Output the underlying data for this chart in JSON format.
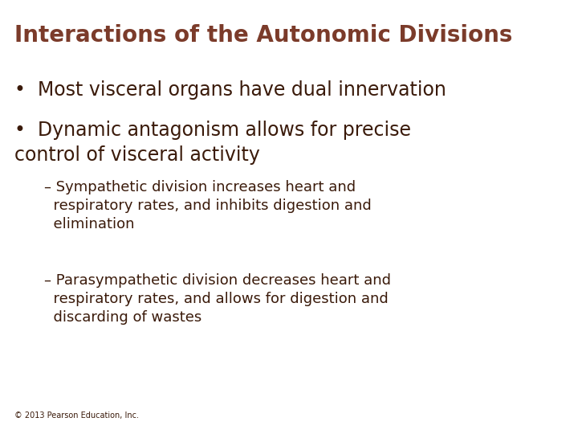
{
  "title": "Interactions of the Autonomic Divisions",
  "title_color": "#7B3B2A",
  "title_fontsize": 20,
  "background_color": "#FFFFFF",
  "text_color": "#3A1A0A",
  "bullet1": "Most visceral organs have dual innervation",
  "bullet2": "Dynamic antagonism allows for precise\ncontrol of visceral activity",
  "sub1": "– Sympathetic division increases heart and\n  respiratory rates, and inhibits digestion and\n  elimination",
  "sub2": "– Parasympathetic division decreases heart and\n  respiratory rates, and allows for digestion and\n  discarding of wastes",
  "footer": "© 2013 Pearson Education, Inc.",
  "bullet_fontsize": 17,
  "sub_fontsize": 13,
  "footer_fontsize": 7
}
